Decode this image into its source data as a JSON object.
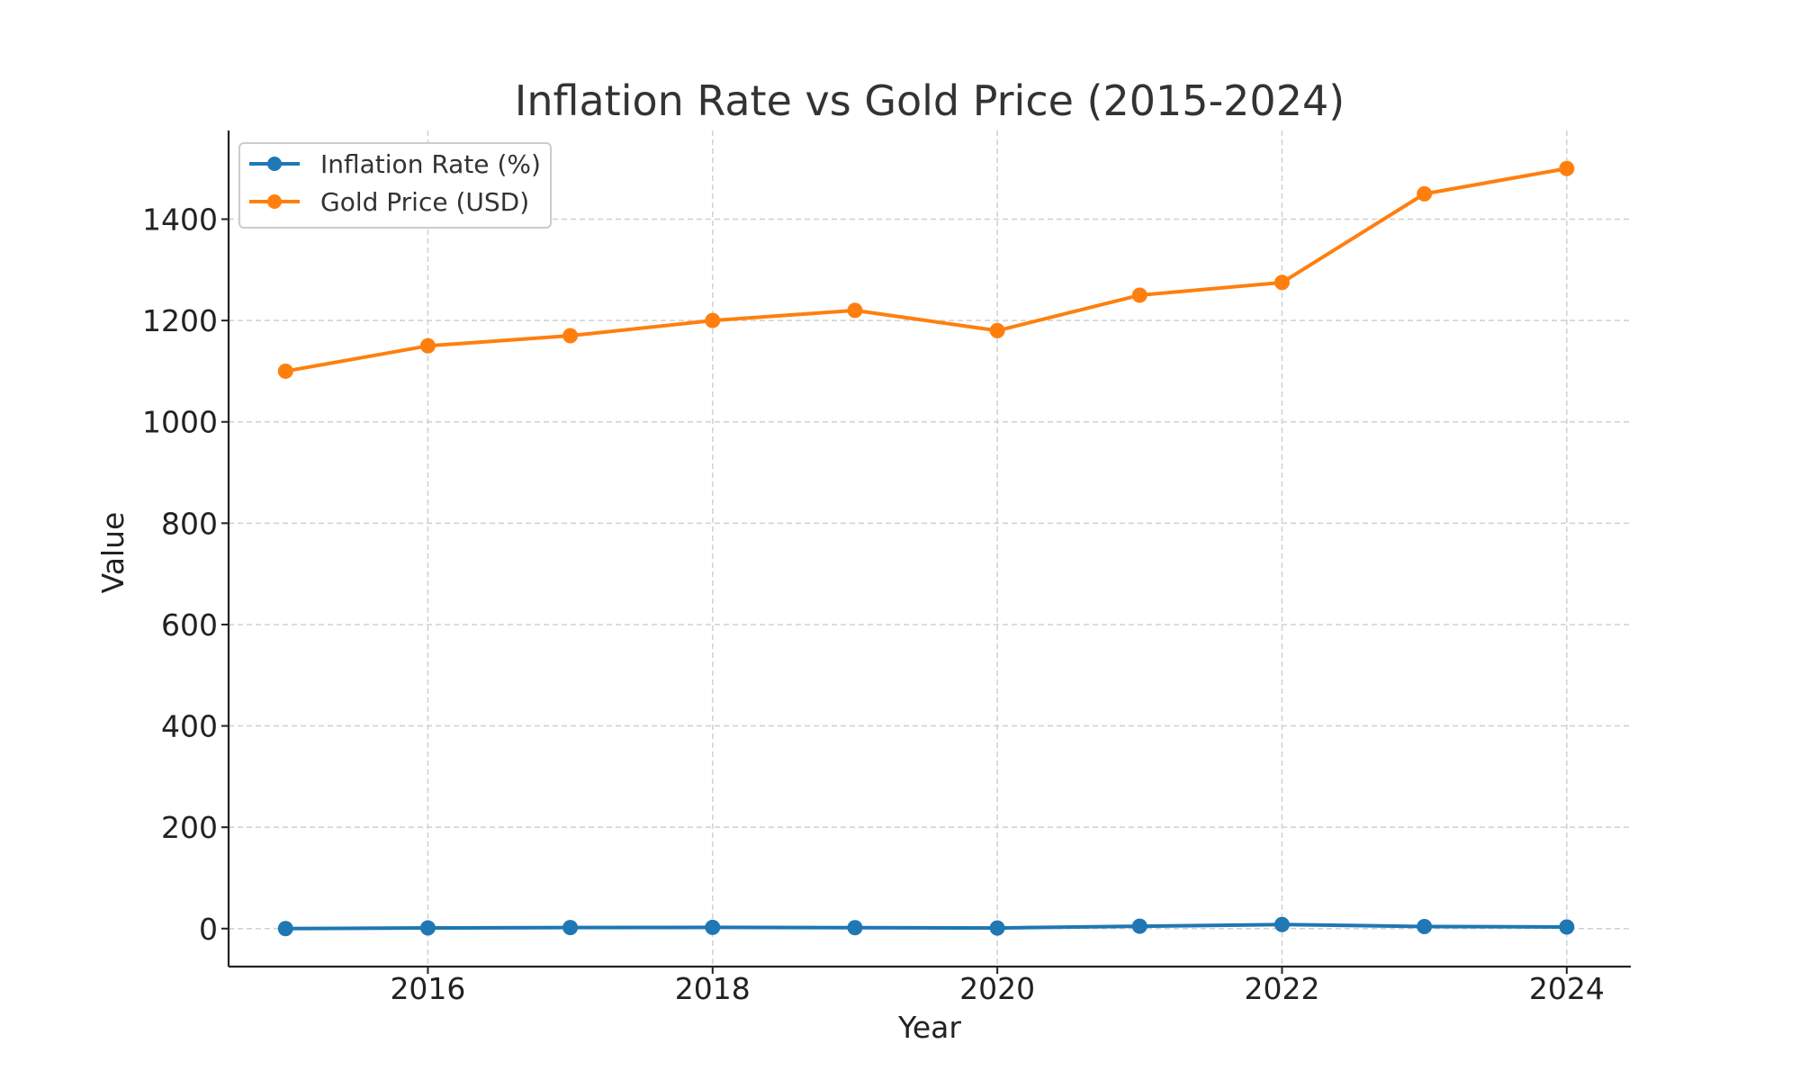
{
  "chart_data": {
    "type": "line",
    "title": "Inflation Rate vs Gold Price (2015-2024)",
    "xlabel": "Year",
    "ylabel": "Value",
    "x": [
      2015,
      2016,
      2017,
      2018,
      2019,
      2020,
      2021,
      2022,
      2023,
      2024
    ],
    "xlim": [
      2014.6,
      2024.45
    ],
    "ylim": [
      -75,
      1575
    ],
    "x_ticks": [
      2016,
      2018,
      2020,
      2022,
      2024
    ],
    "y_ticks": [
      0,
      200,
      400,
      600,
      800,
      1000,
      1200,
      1400
    ],
    "grid": true,
    "legend_position": "top-left",
    "series": [
      {
        "name": "Inflation Rate (%)",
        "color": "#1f77b4",
        "values": [
          0.1,
          1.3,
          2.1,
          2.4,
          1.8,
          1.2,
          4.7,
          8.0,
          4.1,
          3.2
        ]
      },
      {
        "name": "Gold Price (USD)",
        "color": "#ff7f0e",
        "values": [
          1100,
          1150,
          1170,
          1200,
          1220,
          1180,
          1250,
          1275,
          1450,
          1500
        ]
      }
    ]
  }
}
